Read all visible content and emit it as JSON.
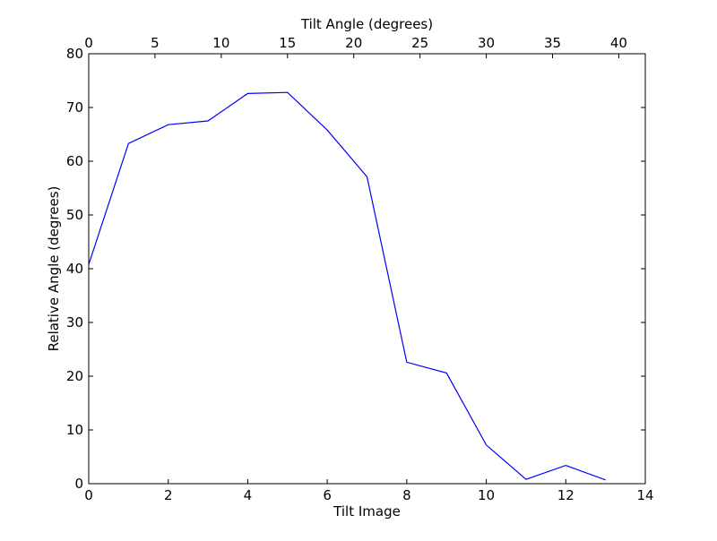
{
  "chart_data": {
    "type": "line",
    "title": "",
    "xlabel": "Tilt Image",
    "ylabel": "Relative Angle (degrees)",
    "x2label": "Tilt Angle (degrees)",
    "xlim": [
      0,
      14
    ],
    "ylim": [
      0,
      80
    ],
    "x2lim": [
      0,
      42
    ],
    "xticks": [
      0,
      2,
      4,
      6,
      8,
      10,
      12,
      14
    ],
    "yticks": [
      0,
      10,
      20,
      30,
      40,
      50,
      60,
      70,
      80
    ],
    "x2ticks": [
      0,
      5,
      10,
      15,
      20,
      25,
      30,
      35,
      40
    ],
    "grid": false,
    "line_color": "#0000ff",
    "series": [
      {
        "x": [
          0,
          1,
          2,
          3,
          4,
          5,
          6,
          7,
          8,
          9,
          10,
          11,
          12,
          13
        ],
        "values": [
          40.8,
          63.3,
          66.8,
          67.5,
          72.6,
          72.8,
          65.8,
          57.1,
          22.6,
          20.6,
          7.2,
          0.8,
          3.4,
          0.7
        ]
      }
    ]
  }
}
